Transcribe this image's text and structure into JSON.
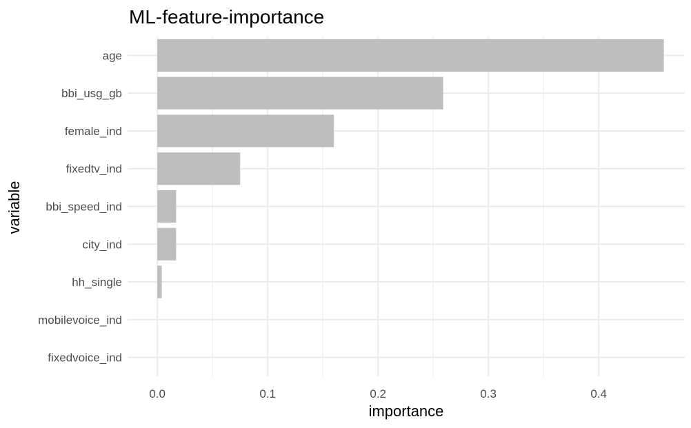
{
  "chart_data": {
    "type": "bar",
    "orientation": "horizontal",
    "title": "ML-feature-importance",
    "xlabel": "importance",
    "ylabel": "variable",
    "categories": [
      "age",
      "bbi_usg_gb",
      "female_ind",
      "fixedtv_ind",
      "bbi_speed_ind",
      "city_ind",
      "hh_single",
      "mobilevoice_ind",
      "fixedvoice_ind"
    ],
    "values": [
      0.459,
      0.259,
      0.16,
      0.075,
      0.017,
      0.017,
      0.004,
      0.0,
      0.0
    ],
    "xlim": [
      -0.027,
      0.478
    ],
    "xticks": [
      0.0,
      0.1,
      0.2,
      0.3,
      0.4
    ],
    "xtick_labels": [
      "0.0",
      "0.1",
      "0.2",
      "0.3",
      "0.4"
    ],
    "grid": true,
    "legend": "none",
    "bar_color": "#bebebe",
    "grid_color": "#ebebeb"
  }
}
